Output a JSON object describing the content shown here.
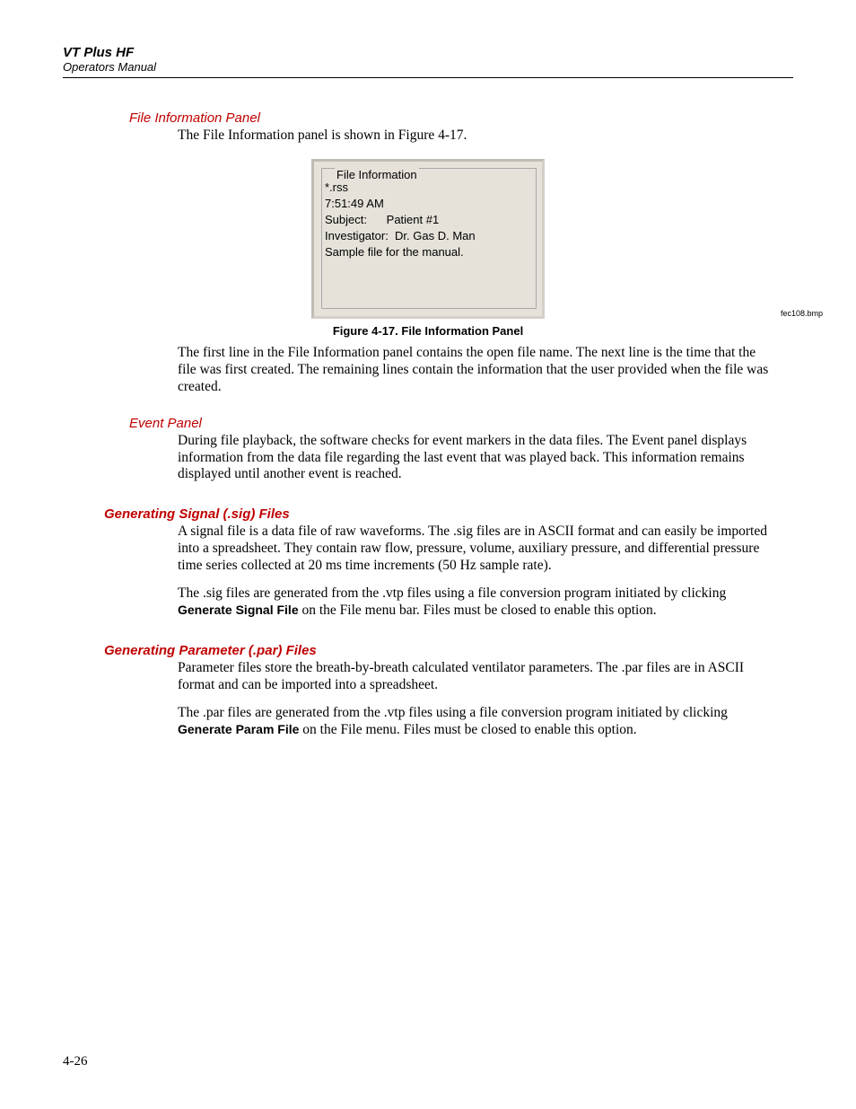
{
  "header": {
    "title": "VT Plus HF",
    "subtitle": "Operators Manual"
  },
  "sections": {
    "fileInfo": {
      "heading": "File Information Panel",
      "intro": "The File Information panel is shown in Figure 4-17.",
      "panel": {
        "legend": "File Information",
        "line1": "*.rss",
        "line2": "7:51:49 AM",
        "line3": "Subject:      Patient #1",
        "line4": "Investigator:  Dr. Gas D. Man",
        "line5": "Sample file for the manual."
      },
      "bmp": "fec108.bmp",
      "caption": "Figure 4-17. File Information Panel",
      "para1": "The first line in the File Information panel contains the open file name. The next line is the time that the file was first created. The remaining lines contain the information that the user provided when the file was created."
    },
    "eventPanel": {
      "heading": "Event Panel",
      "para1": "During file playback, the software checks for event markers in the data files. The Event panel displays information from the data file regarding the last event that was played back. This information remains displayed until another event is reached."
    },
    "sig": {
      "heading": "Generating Signal (.sig) Files",
      "para1": "A signal file is a data file of raw waveforms. The .sig files are in ASCII format and can easily be imported into a spreadsheet. They contain raw flow, pressure, volume, auxiliary pressure, and differential pressure time series collected at 20 ms time increments (50 Hz sample rate).",
      "para2a": "The .sig files are generated from the .vtp files using a file conversion program initiated by clicking ",
      "para2bold": "Generate Signal File",
      "para2b": " on the File menu bar. Files must be closed to enable this option."
    },
    "par": {
      "heading": "Generating Parameter (.par) Files",
      "para1": "Parameter files store the breath-by-breath calculated ventilator parameters. The .par files are in ASCII format and can be imported into a spreadsheet.",
      "para2a": "The .par files are generated from the .vtp files using a file conversion program initiated by clicking ",
      "para2bold": "Generate Param File",
      "para2b": " on the File menu. Files must be closed to enable this option."
    }
  },
  "pageNumber": "4-26"
}
